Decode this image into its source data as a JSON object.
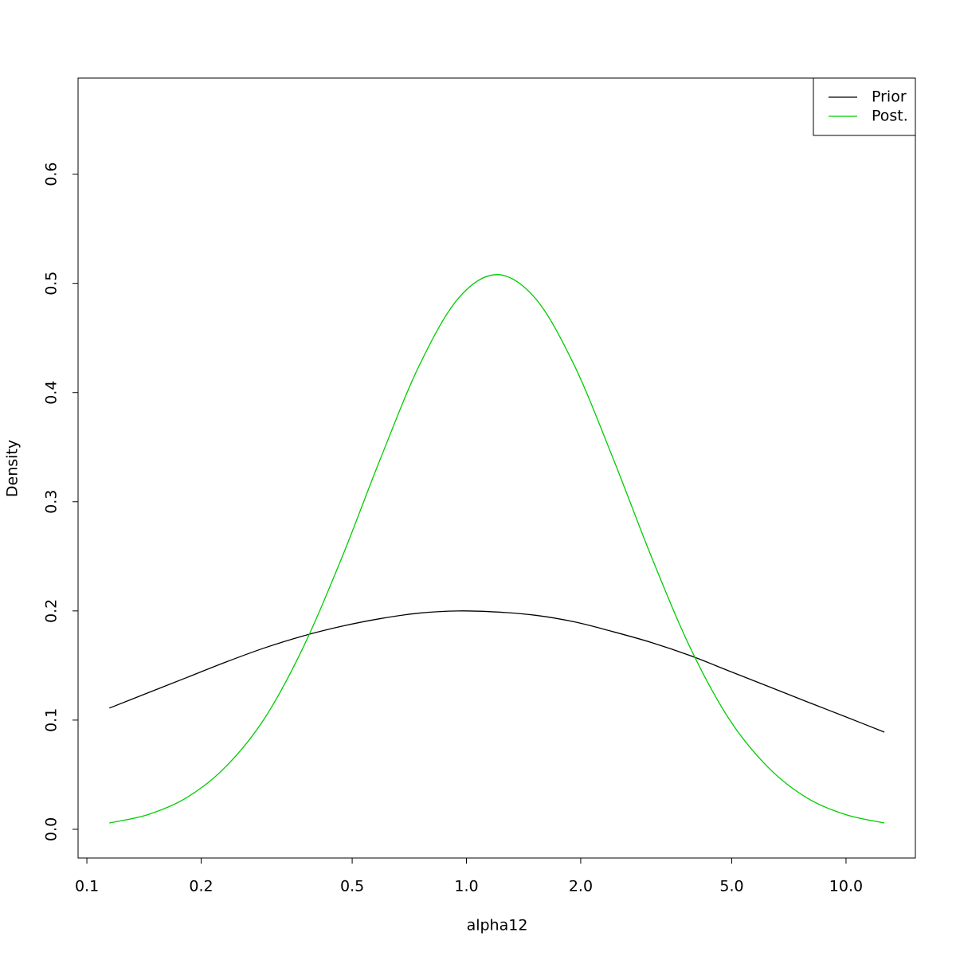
{
  "chart_data": {
    "type": "line",
    "x_label": "alpha12",
    "y_label": "Density",
    "x": [
      0.1146,
      0.1449,
      0.1833,
      0.2317,
      0.2931,
      0.3707,
      0.4699,
      0.5943,
      0.7516,
      0.9506,
      1.202,
      1.521,
      1.923,
      2.432,
      3.076,
      3.89,
      4.92,
      6.223,
      7.87,
      9.977,
      12.62
    ],
    "series": [
      {
        "name": "Prior",
        "color": "#000000",
        "values": [
          0.111,
          0.125,
          0.139,
          0.153,
          0.166,
          0.177,
          0.186,
          0.193,
          0.198,
          0.2,
          0.199,
          0.196,
          0.19,
          0.181,
          0.171,
          0.159,
          0.145,
          0.131,
          0.117,
          0.103,
          0.089
        ]
      },
      {
        "name": "Post.",
        "color": "#00cd00",
        "values": [
          0.0058,
          0.0135,
          0.029,
          0.057,
          0.101,
          0.166,
          0.249,
          0.34,
          0.425,
          0.486,
          0.508,
          0.486,
          0.425,
          0.34,
          0.249,
          0.166,
          0.101,
          0.057,
          0.029,
          0.0135,
          0.0058
        ]
      }
    ],
    "x_log": true,
    "xlim": [
      0.0948,
      15.23
    ],
    "xticks": [
      0.1,
      0.2,
      0.5,
      {
        "value": 1,
        "label": "1.0"
      },
      {
        "value": 2,
        "label": "2.0"
      },
      {
        "value": 5,
        "label": "5.0"
      },
      {
        "value": 10,
        "label": "10.0"
      }
    ],
    "ylim": [
      -0.0263,
      0.688
    ],
    "yticks": [
      {
        "value": 0,
        "label": "0.0"
      },
      0.1,
      0.2,
      0.3,
      0.4,
      0.5,
      0.6
    ],
    "legend": "top-right"
  }
}
